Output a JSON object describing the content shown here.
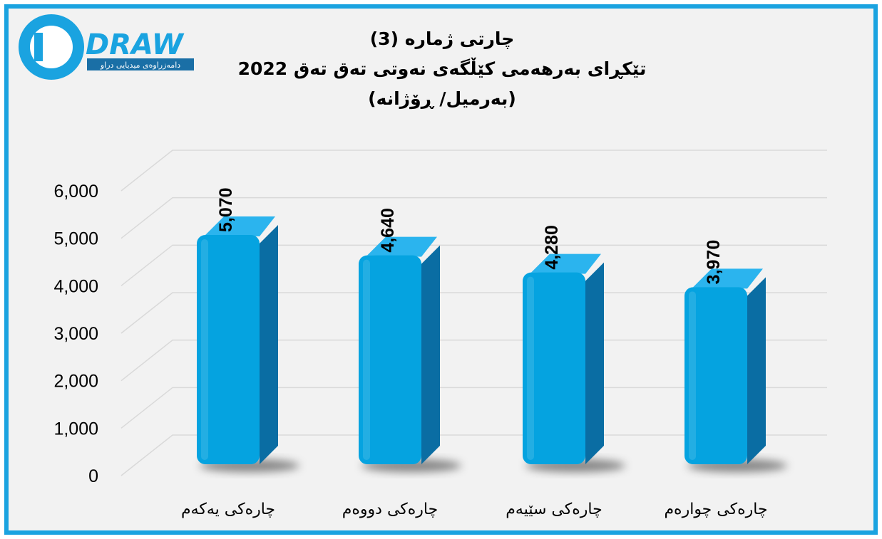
{
  "logo": {
    "wordmark": "DRAW",
    "tagline": "دامەزراوەی میدیایی دراو",
    "colors": {
      "blue": "#1aa3e0",
      "dark": "#1a6fa6"
    }
  },
  "chart_data": {
    "type": "bar",
    "title_lines": [
      "چارتی ژمارە (3)",
      "تێکڕای بەرهەمی کێڵگەی نەوتی تەق تەق 2022",
      "(بەرمیل/ ڕۆژانە)"
    ],
    "categories": [
      "چارەکی یەکەم",
      "چارەکی دووەم",
      "چارەکی سێیەم",
      "چارەکی چوارەم"
    ],
    "values": [
      5070,
      4640,
      4280,
      3970
    ],
    "value_labels": [
      "5,070",
      "4,640",
      "4,280",
      "3,970"
    ],
    "y_ticks": [
      "0",
      "1,000",
      "2,000",
      "3,000",
      "4,000",
      "5,000",
      "6,000"
    ],
    "ylim": [
      0,
      6000
    ],
    "grid": true,
    "legend": "none",
    "colors": {
      "bar_front": "#05a3e0",
      "bar_side": "#0a6da3",
      "bar_top": "#2bb4ee",
      "frame": "#1aa3e0"
    }
  }
}
